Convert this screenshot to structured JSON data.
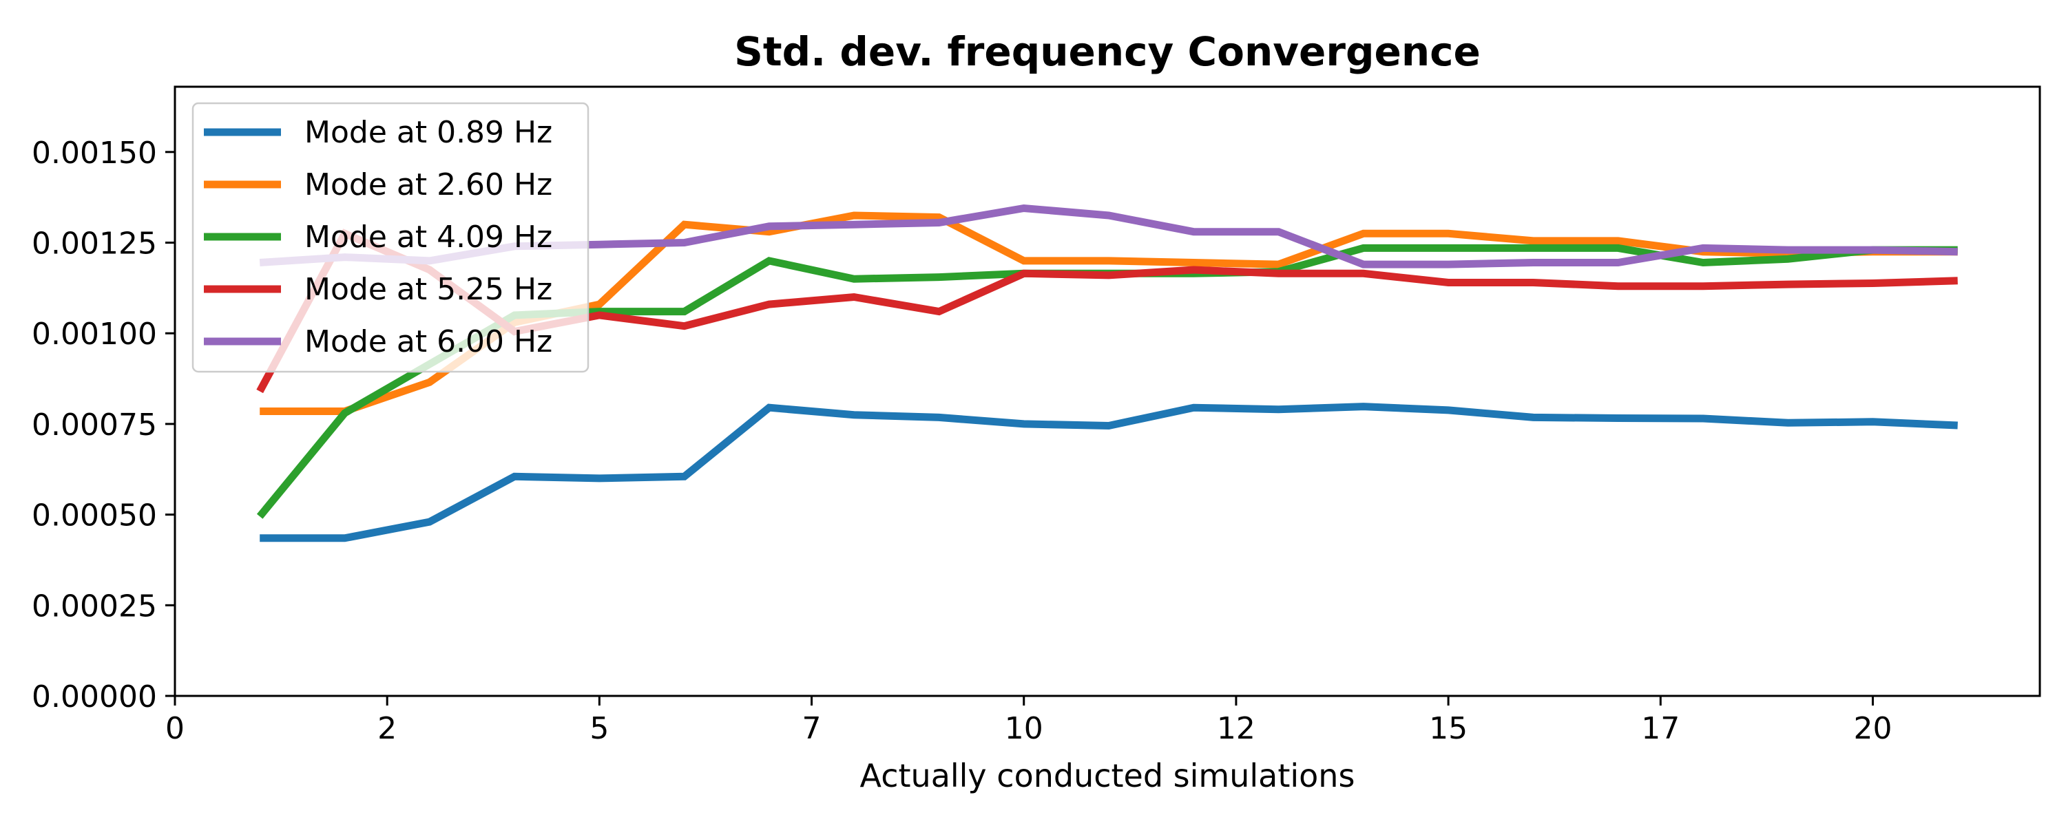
{
  "chart_data": {
    "type": "line",
    "title": "Std. dev. frequency Convergence",
    "xlabel": "Actually conducted simulations",
    "ylabel": "",
    "xlim": [
      0,
      25.25
    ],
    "ylim": [
      0,
      0.00168
    ],
    "xticks": [
      {
        "value": 0,
        "label": "0"
      },
      {
        "value": 2.8736,
        "label": "2"
      },
      {
        "value": 5.7471,
        "label": "5"
      },
      {
        "value": 8.6207,
        "label": "7"
      },
      {
        "value": 11.4943,
        "label": "10"
      },
      {
        "value": 14.3678,
        "label": "12"
      },
      {
        "value": 17.2414,
        "label": "15"
      },
      {
        "value": 20.1149,
        "label": "17"
      },
      {
        "value": 22.9885,
        "label": "20"
      }
    ],
    "yticks": [
      {
        "value": 0,
        "label": "0.00000"
      },
      {
        "value": 0.00025,
        "label": "0.00025"
      },
      {
        "value": 0.0005,
        "label": "0.00050"
      },
      {
        "value": 0.00075,
        "label": "0.00075"
      },
      {
        "value": 0.001,
        "label": "0.00100"
      },
      {
        "value": 0.00125,
        "label": "0.00125"
      },
      {
        "value": 0.0015,
        "label": "0.00150"
      }
    ],
    "legend_position": "top-left",
    "x": [
      1.149,
      2.299,
      3.448,
      4.598,
      5.747,
      6.897,
      8.046,
      9.195,
      10.345,
      11.494,
      12.644,
      13.793,
      14.943,
      16.092,
      17.241,
      18.391,
      19.54,
      20.69,
      21.839,
      22.989,
      24.138
    ],
    "series": [
      {
        "name": "Mode at 0.89 Hz",
        "color": "#1f77b4",
        "values": [
          0.000435,
          0.000435,
          0.00048,
          0.000605,
          0.0006,
          0.000605,
          0.000795,
          0.000775,
          0.000768,
          0.00075,
          0.000745,
          0.000795,
          0.00079,
          0.000798,
          0.000788,
          0.000768,
          0.000766,
          0.000765,
          0.000753,
          0.000756,
          0.000746
        ]
      },
      {
        "name": "Mode at 2.60 Hz",
        "color": "#ff7f0e",
        "values": [
          0.000785,
          0.000785,
          0.000865,
          0.00103,
          0.00108,
          0.0013,
          0.00128,
          0.001325,
          0.00132,
          0.0012,
          0.0012,
          0.001195,
          0.00119,
          0.001275,
          0.001275,
          0.001255,
          0.001255,
          0.001225,
          0.00122,
          0.001225,
          0.001225
        ]
      },
      {
        "name": "Mode at 4.09 Hz",
        "color": "#2ca02c",
        "values": [
          0.000495,
          0.00078,
          0.000915,
          0.00105,
          0.00106,
          0.00106,
          0.0012,
          0.00115,
          0.001155,
          0.001165,
          0.001165,
          0.001165,
          0.00117,
          0.001235,
          0.001235,
          0.001235,
          0.001235,
          0.001195,
          0.001205,
          0.00123,
          0.00123
        ]
      },
      {
        "name": "Mode at 5.25 Hz",
        "color": "#d62728",
        "values": [
          0.00084,
          0.001275,
          0.001175,
          0.001005,
          0.00105,
          0.00102,
          0.00108,
          0.0011,
          0.00106,
          0.001165,
          0.00116,
          0.001175,
          0.001165,
          0.001165,
          0.00114,
          0.00114,
          0.00113,
          0.00113,
          0.001135,
          0.001138,
          0.001145
        ]
      },
      {
        "name": "Mode at 6.00 Hz",
        "color": "#9467bd",
        "values": [
          0.001195,
          0.00121,
          0.0012,
          0.00124,
          0.001245,
          0.00125,
          0.001295,
          0.0013,
          0.001305,
          0.001345,
          0.001325,
          0.00128,
          0.00128,
          0.00119,
          0.00119,
          0.001195,
          0.001195,
          0.001235,
          0.00123,
          0.00123,
          0.001225
        ]
      }
    ]
  }
}
